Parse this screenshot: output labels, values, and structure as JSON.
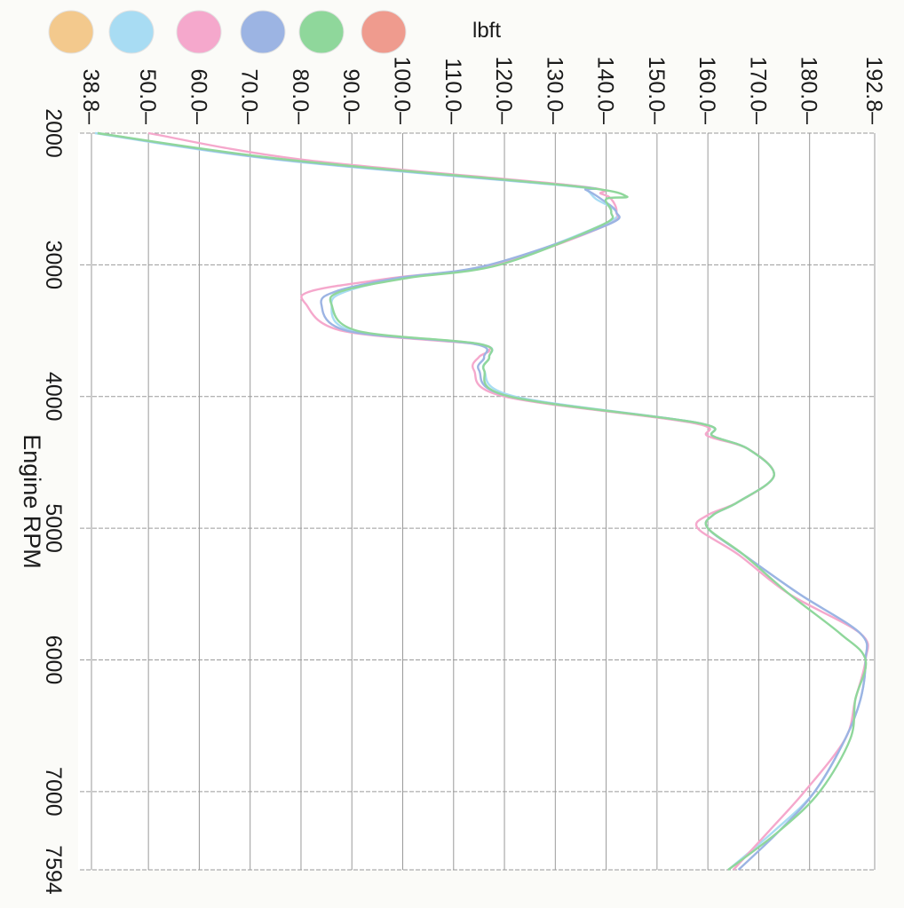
{
  "chart_data": {
    "type": "line",
    "orientation": "rotated-90-clockwise",
    "xlabel": "Engine RPM",
    "ylabel": "lbft",
    "xlim": [
      2000,
      7594
    ],
    "ylim": [
      38.8,
      192.8
    ],
    "x_ticks": [
      "2000",
      "3000",
      "4000",
      "5000",
      "6000",
      "7000",
      "7594"
    ],
    "y_ticks": [
      "38.8",
      "50.0",
      "60.0",
      "70.0",
      "80.0",
      "90.0",
      "100.0",
      "110.0",
      "120.0",
      "130.0",
      "140.0",
      "150.0",
      "160.0",
      "170.0",
      "180.0",
      "192.8"
    ],
    "grid": true,
    "legend_position": "top",
    "series": [
      {
        "color": "#f3c98d",
        "x": [],
        "y": []
      },
      {
        "color": "#a8dcf3",
        "x": [
          2000,
          2200,
          2400,
          2430,
          2500,
          2600,
          2700,
          3000,
          3100,
          3200,
          3300,
          3500,
          3600,
          3700,
          3800,
          4000,
          4200,
          4300,
          4400,
          4600,
          4800,
          4900,
          5000,
          5200,
          5500,
          5800,
          6000,
          6300,
          6600,
          7000,
          7300,
          7594
        ],
        "y": [
          39.5,
          75,
          132,
          136,
          138,
          142,
          139,
          118,
          100,
          89,
          86,
          90,
          115,
          117,
          116,
          122,
          158,
          161,
          168,
          173,
          166,
          161,
          160,
          167,
          178,
          190,
          191,
          190,
          187,
          181,
          173,
          164
        ]
      },
      {
        "color": "#f5a8cc",
        "x": [
          2000,
          2200,
          2400,
          2460,
          2500,
          2600,
          2700,
          3000,
          3100,
          3200,
          3300,
          3500,
          3600,
          3650,
          3700,
          3800,
          4000,
          4200,
          4300,
          4400,
          4600,
          4800,
          4900,
          5000,
          5200,
          5500,
          5800,
          6000,
          6300,
          6600,
          7000,
          7300,
          7594
        ],
        "y": [
          50,
          80,
          134,
          139,
          141,
          142,
          140,
          118,
          98,
          82,
          81,
          88,
          114,
          117,
          115,
          114,
          120,
          157,
          160,
          168,
          173,
          166,
          160,
          158,
          166,
          176,
          190,
          191,
          189,
          187,
          179,
          172,
          165
        ]
      },
      {
        "color": "#9cb4e3",
        "x": [
          2000,
          2200,
          2400,
          2430,
          2500,
          2600,
          2700,
          3000,
          3100,
          3200,
          3300,
          3500,
          3600,
          3700,
          3800,
          4000,
          4200,
          4300,
          4400,
          4600,
          4800,
          4900,
          5000,
          5200,
          5500,
          5800,
          6000,
          6300,
          6600,
          7000,
          7300,
          7594
        ],
        "y": [
          40,
          76,
          133,
          136,
          139,
          142,
          140,
          117,
          99,
          87,
          84,
          89,
          114,
          116,
          115,
          121,
          158,
          161,
          168,
          173,
          166,
          161,
          160,
          167,
          178,
          190,
          191,
          190,
          187,
          181,
          174,
          166
        ]
      },
      {
        "color": "#8fd79b",
        "x": [
          2000,
          2200,
          2400,
          2480,
          2500,
          2600,
          2700,
          3000,
          3100,
          3200,
          3300,
          3500,
          3600,
          3700,
          3800,
          4000,
          4200,
          4300,
          4400,
          4600,
          4800,
          4900,
          5000,
          5200,
          5500,
          5800,
          6000,
          6300,
          6600,
          7000,
          7300,
          7594
        ],
        "y": [
          40,
          77,
          133,
          144,
          140,
          141,
          139,
          119,
          101,
          88,
          86,
          91,
          115,
          117,
          116,
          121,
          158,
          161,
          168,
          173,
          166,
          161,
          160,
          167,
          176,
          186,
          191,
          189,
          188,
          182,
          174,
          164
        ]
      },
      {
        "color": "#ef9b8e",
        "x": [],
        "y": []
      }
    ]
  }
}
